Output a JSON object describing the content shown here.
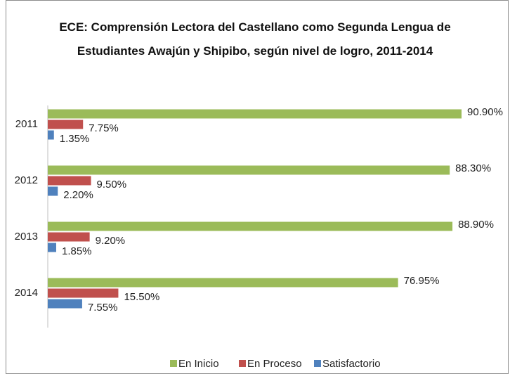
{
  "chart_data": {
    "type": "bar",
    "orientation": "horizontal",
    "title": "ECE: Comprensión Lectora del Castellano como Segunda Lengua de Estudiantes Awajún y Shipibo, según nivel de logro, 2011-2014",
    "categories": [
      "2011",
      "2012",
      "2013",
      "2014"
    ],
    "series": [
      {
        "name": "En Inicio",
        "color": "#9bbb59",
        "values": [
          90.9,
          88.3,
          88.9,
          76.95
        ],
        "value_labels": [
          "90.90%",
          "88.30%",
          "88.90%",
          "76.95%"
        ]
      },
      {
        "name": "En Proceso",
        "color": "#c0504d",
        "values": [
          7.75,
          9.5,
          9.2,
          15.5
        ],
        "value_labels": [
          "7.75%",
          "9.50%",
          "9.20%",
          "15.50%"
        ]
      },
      {
        "name": "Satisfactorio",
        "color": "#4f81bd",
        "values": [
          1.35,
          2.2,
          1.85,
          7.55
        ],
        "value_labels": [
          "1.35%",
          "2.20%",
          "1.85%",
          "7.55%"
        ]
      }
    ],
    "legend": "bottom"
  }
}
